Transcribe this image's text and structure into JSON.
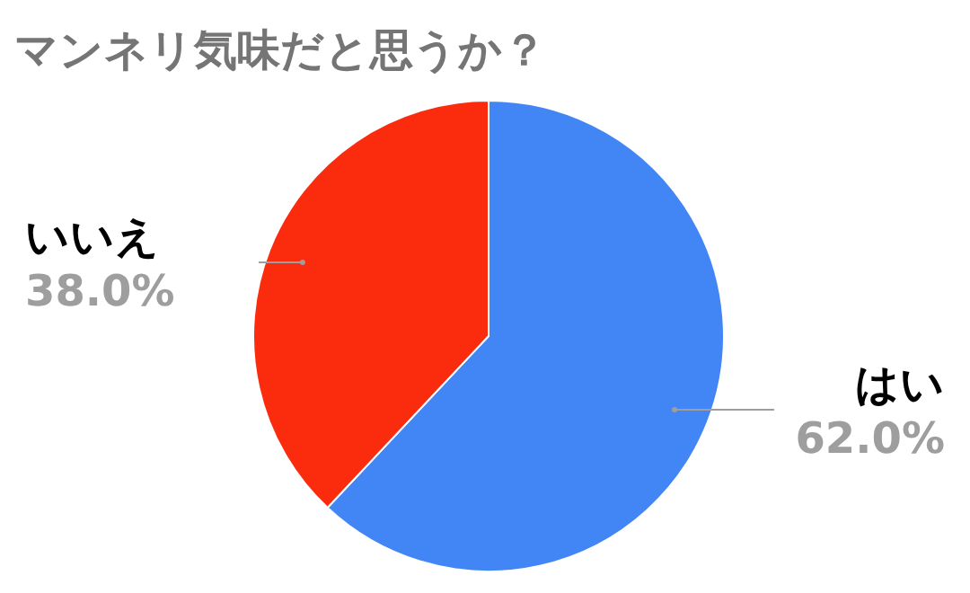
{
  "chart_data": {
    "type": "pie",
    "title": "マンネリ気味だと思うか？",
    "categories": [
      "はい",
      "いいえ"
    ],
    "values": [
      62.0,
      38.0
    ],
    "value_labels": [
      "62.0%",
      "38.0%"
    ],
    "colors": [
      "#4285f4",
      "#fb2b0d"
    ]
  }
}
